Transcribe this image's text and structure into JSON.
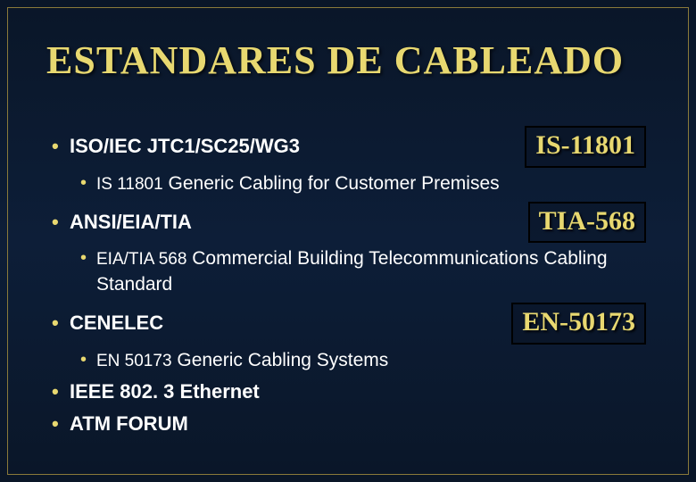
{
  "colors": {
    "background_top": "#0a1628",
    "background_mid": "#0d1e38",
    "accent": "#e8d870",
    "text": "#ffffff",
    "frame_border": "#8a7a3a",
    "badge_border": "#000000"
  },
  "title": "ESTANDARES DE CABLEADO",
  "sections": [
    {
      "heading": "ISO/IEC JTC1/SC25/WG3",
      "badge": "IS-11801",
      "sub": {
        "code": "IS 11801",
        "desc": "Generic Cabling for Customer Premises"
      }
    },
    {
      "heading": "ANSI/EIA/TIA",
      "badge": "TIA-568",
      "sub": {
        "code": "EIA/TIA 568",
        "desc": "Commercial Building Telecommunications Cabling Standard"
      }
    },
    {
      "heading": "CENELEC",
      "badge": "EN-50173",
      "sub": {
        "code": "EN 50173",
        "desc": "Generic Cabling Systems"
      }
    },
    {
      "heading": "IEEE 802. 3 Ethernet",
      "badge": null,
      "sub": null
    },
    {
      "heading": "ATM FORUM",
      "badge": null,
      "sub": null
    }
  ]
}
